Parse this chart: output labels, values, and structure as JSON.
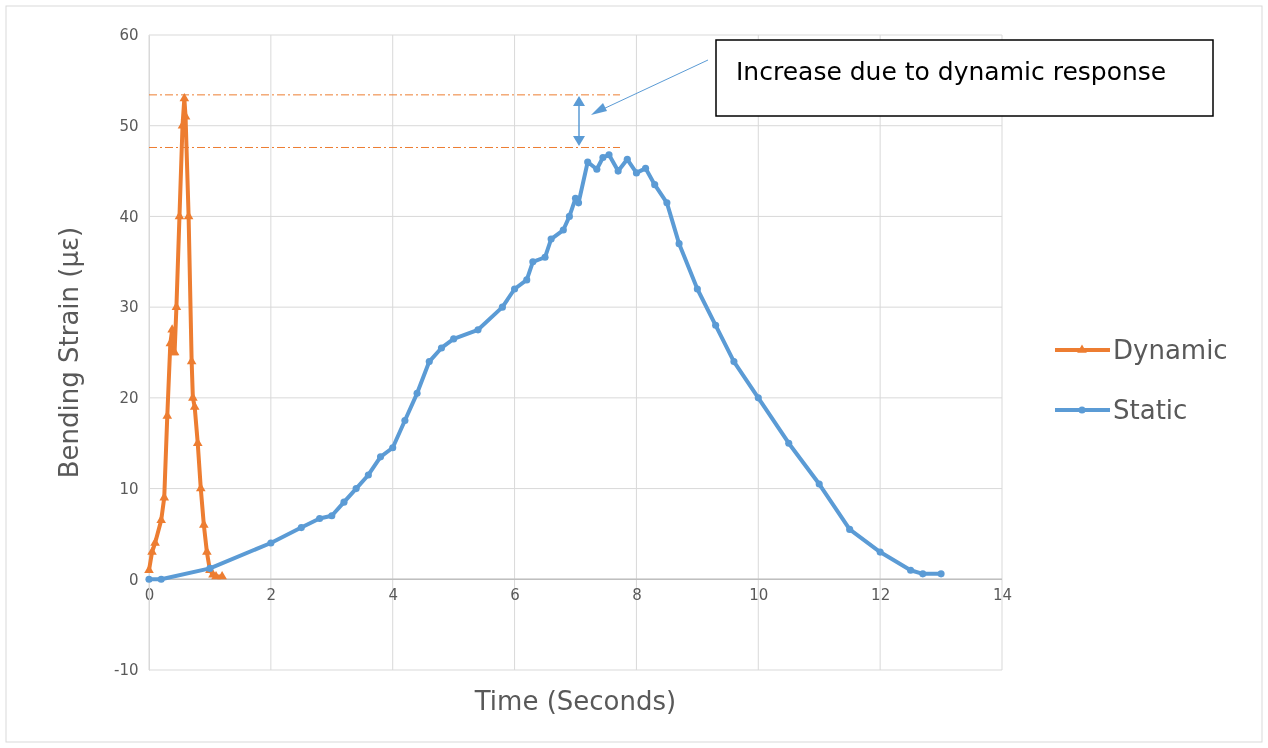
{
  "chart_data": {
    "type": "line",
    "xlabel": "Time (Seconds)",
    "ylabel": "Bending Strain (με)",
    "xlim": [
      0,
      14
    ],
    "xticks": [
      0,
      2,
      4,
      6,
      8,
      10,
      12,
      14
    ],
    "ylim": [
      -10,
      60
    ],
    "yticks": [
      -10,
      0,
      10,
      20,
      30,
      40,
      50,
      60
    ],
    "grid": true,
    "legend": "right",
    "series": [
      {
        "name": "Dynamic",
        "color": "#ed7d31",
        "marker": "triangle",
        "x": [
          0,
          0.05,
          0.1,
          0.2,
          0.25,
          0.3,
          0.35,
          0.38,
          0.4,
          0.42,
          0.45,
          0.5,
          0.55,
          0.58,
          0.6,
          0.65,
          0.7,
          0.72,
          0.75,
          0.8,
          0.85,
          0.9,
          0.95,
          1.0,
          1.05,
          1.1,
          1.2
        ],
        "values": [
          1,
          3,
          4,
          6.5,
          9,
          18,
          26,
          27.5,
          25,
          25,
          30,
          40,
          50,
          53,
          51,
          40,
          24,
          20,
          19,
          15,
          10,
          6,
          3,
          1,
          0.5,
          0.3,
          0.3
        ]
      },
      {
        "name": "Static",
        "color": "#5b9bd5",
        "marker": "circle",
        "x": [
          0,
          0.2,
          1,
          2,
          2.5,
          2.8,
          3,
          3.2,
          3.4,
          3.6,
          3.8,
          4,
          4.2,
          4.4,
          4.6,
          4.8,
          5,
          5.4,
          5.8,
          6,
          6.2,
          6.3,
          6.5,
          6.6,
          6.8,
          6.9,
          7,
          7.05,
          7.2,
          7.35,
          7.45,
          7.55,
          7.7,
          7.85,
          8,
          8.15,
          8.3,
          8.5,
          8.7,
          9,
          9.3,
          9.6,
          10,
          10.5,
          11,
          11.5,
          12,
          12.5,
          12.7,
          13
        ],
        "values": [
          0,
          0,
          1.2,
          4,
          5.7,
          6.7,
          7,
          8.5,
          10,
          11.5,
          13.5,
          14.5,
          17.5,
          20.5,
          24,
          25.5,
          26.5,
          27.5,
          30,
          32,
          33,
          35,
          35.5,
          37.5,
          38.5,
          40,
          42,
          41.5,
          46,
          45.2,
          46.5,
          46.8,
          45,
          46.3,
          44.8,
          45.3,
          43.5,
          41.5,
          37,
          32,
          28,
          24,
          20,
          15,
          10.5,
          5.5,
          3,
          1,
          0.6,
          0.6
        ]
      }
    ],
    "ref_lines": [
      {
        "axis": "y",
        "value": 53.4,
        "color": "#ed7d31",
        "line_style": "dashdot"
      },
      {
        "axis": "y",
        "value": 47.6,
        "color": "#ed7d31",
        "line_style": "dashdot"
      }
    ],
    "annotations": [
      "Increase due to dynamic response"
    ]
  }
}
